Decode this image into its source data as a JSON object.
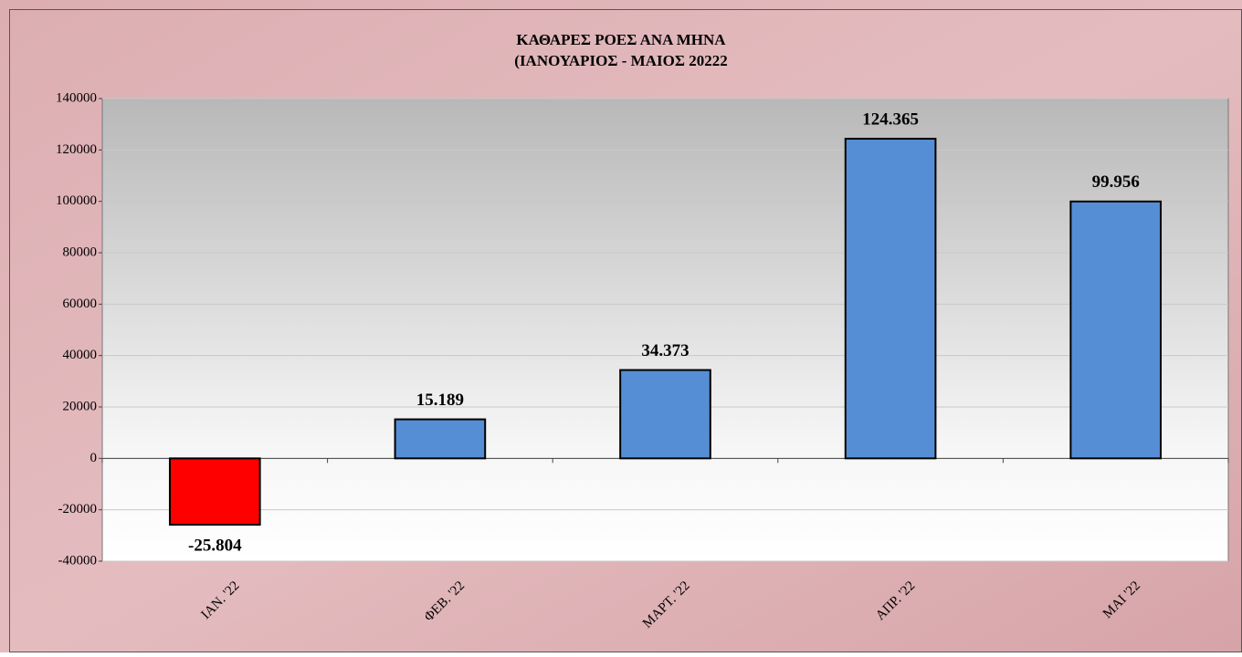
{
  "chart_data": {
    "type": "bar",
    "title": "ΚΑΘΑΡΕΣ ΡΟΕΣ ΑΝΑ ΜΗΝΑ",
    "subtitle": "(ΙΑΝΟΥΑΡΙΟΣ  -  ΜΑΙΟΣ  20222",
    "categories": [
      "ΙΑΝ. '22",
      "ΦΕΒ. '22",
      "ΜΑΡΤ. '22",
      "ΑΠΡ. '22",
      "ΜΑΙ '22"
    ],
    "values": [
      -25804,
      15189,
      34373,
      124365,
      99956
    ],
    "value_labels": [
      "-25.804",
      "15.189",
      "34.373",
      "124.365",
      "99.956"
    ],
    "colors": [
      "#ff0000",
      "#558ed5",
      "#558ed5",
      "#558ed5",
      "#558ed5"
    ],
    "ylim": [
      -40000,
      140000
    ],
    "yticks": [
      -40000,
      -20000,
      0,
      20000,
      40000,
      60000,
      80000,
      100000,
      120000,
      140000
    ],
    "grid": true
  }
}
